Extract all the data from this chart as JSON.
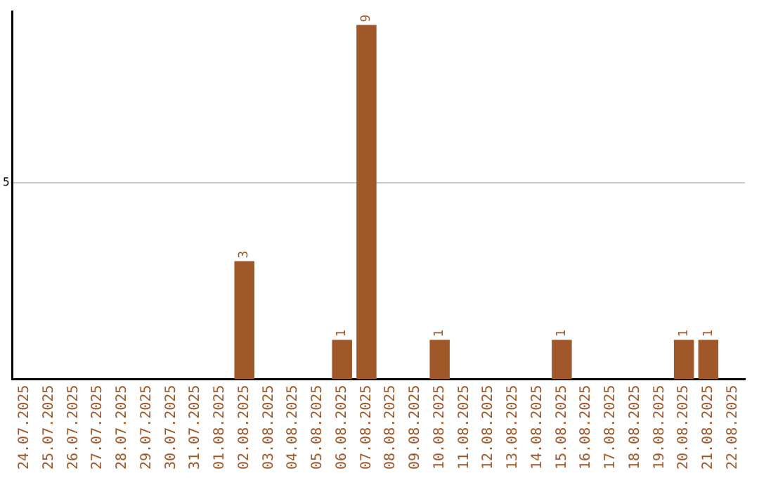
{
  "chart_data": {
    "type": "bar",
    "categories": [
      "24.07.2025",
      "25.07.2025",
      "26.07.2025",
      "27.07.2025",
      "28.07.2025",
      "29.07.2025",
      "30.07.2025",
      "31.07.2025",
      "01.08.2025",
      "02.08.2025",
      "03.08.2025",
      "04.08.2025",
      "05.08.2025",
      "06.08.2025",
      "07.08.2025",
      "08.08.2025",
      "09.08.2025",
      "10.08.2025",
      "11.08.2025",
      "12.08.2025",
      "13.08.2025",
      "14.08.2025",
      "15.08.2025",
      "16.08.2025",
      "17.08.2025",
      "18.08.2025",
      "19.08.2025",
      "20.08.2025",
      "21.08.2025",
      "22.08.2025"
    ],
    "values": [
      0,
      0,
      0,
      0,
      0,
      0,
      0,
      0,
      0,
      3,
      0,
      0,
      0,
      1,
      9,
      0,
      0,
      1,
      0,
      0,
      0,
      0,
      1,
      0,
      0,
      0,
      0,
      1,
      1,
      0
    ],
    "value_labels": [
      null,
      null,
      null,
      null,
      null,
      null,
      null,
      null,
      null,
      "3",
      null,
      null,
      null,
      "1",
      "9",
      null,
      null,
      "1",
      null,
      null,
      null,
      null,
      "1",
      null,
      null,
      null,
      null,
      "1",
      "1",
      null
    ],
    "color": "#a0572a",
    "ylim": [
      0,
      9.35
    ],
    "yticks": [
      5
    ],
    "grid": "y",
    "legend": false
  }
}
